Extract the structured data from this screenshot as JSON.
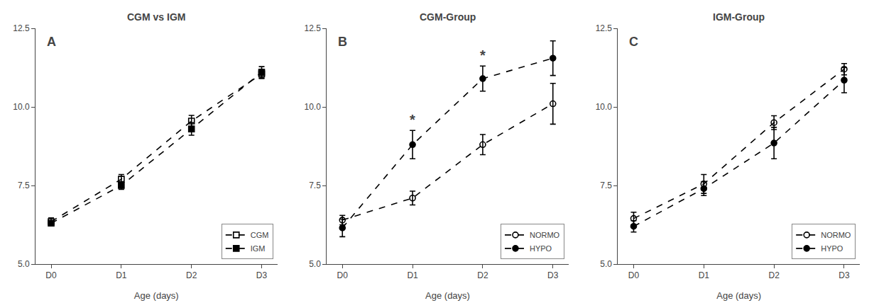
{
  "chart_data": [
    {
      "type": "line",
      "title": "CGM vs IGM",
      "xlabel": "Age (days)",
      "categories": [
        "D0",
        "D1",
        "D2",
        "D3"
      ],
      "series": [
        {
          "name": "CGM",
          "values": [
            6.35,
            7.7,
            9.55,
            11.05
          ],
          "yerr": [
            0.12,
            0.15,
            0.18,
            0.15
          ],
          "marker": "square-open",
          "line_style": "dashed",
          "color": "black"
        },
        {
          "name": "IGM",
          "values": [
            6.3,
            7.5,
            9.3,
            11.1
          ],
          "yerr": [
            0.08,
            0.12,
            0.2,
            0.18
          ],
          "marker": "square",
          "line_style": "dashed",
          "color": "black"
        }
      ],
      "annotations": [
        {
          "text": "A"
        }
      ],
      "ylim": [
        5.0,
        12.5
      ],
      "yticks": [
        {
          "value": 5.0,
          "label": "5.0"
        },
        7.5,
        {
          "value": 10.0,
          "label": "10.0"
        },
        12.5
      ],
      "grid": false,
      "legend": "lower right"
    },
    {
      "type": "line",
      "title": "CGM-Group",
      "xlabel": "Age (days)",
      "categories": [
        "D0",
        "D1",
        "D2",
        "D3"
      ],
      "series": [
        {
          "name": "NORMO",
          "values": [
            6.4,
            7.1,
            8.8,
            10.1
          ],
          "yerr": [
            0.15,
            0.22,
            0.32,
            0.65
          ],
          "marker": "circle-open",
          "line_style": "dashed",
          "color": "black"
        },
        {
          "name": "HYPO",
          "values": [
            6.15,
            8.8,
            10.9,
            11.55
          ],
          "yerr": [
            0.28,
            0.45,
            0.4,
            0.55
          ],
          "marker": "circle",
          "line_style": "dashed",
          "color": "black"
        }
      ],
      "annotations": [
        {
          "text": "B"
        },
        {
          "text": "*",
          "x": "D1"
        },
        {
          "text": "*",
          "x": "D2"
        }
      ],
      "ylim": [
        5.0,
        12.5
      ],
      "yticks": [
        {
          "value": 5.0,
          "label": "5.0"
        },
        7.5,
        {
          "value": 10.0,
          "label": "10.0"
        },
        12.5
      ],
      "grid": false,
      "legend": "lower right"
    },
    {
      "type": "line",
      "title": "IGM-Group",
      "xlabel": "Age (days)",
      "categories": [
        "D0",
        "D1",
        "D2",
        "D3"
      ],
      "series": [
        {
          "name": "NORMO",
          "values": [
            6.45,
            7.55,
            9.5,
            11.2
          ],
          "yerr": [
            0.2,
            0.3,
            0.22,
            0.18
          ],
          "marker": "circle-open",
          "line_style": "dashed",
          "color": "black"
        },
        {
          "name": "HYPO",
          "values": [
            6.2,
            7.4,
            8.85,
            10.85
          ],
          "yerr": [
            0.18,
            0.22,
            0.5,
            0.4
          ],
          "marker": "circle",
          "line_style": "dashed",
          "color": "black"
        }
      ],
      "annotations": [
        {
          "text": "C"
        }
      ],
      "ylim": [
        5.0,
        12.5
      ],
      "yticks": [
        {
          "value": 5.0,
          "label": "5.0"
        },
        7.5,
        {
          "value": 10.0,
          "label": "10.0"
        },
        12.5
      ],
      "grid": false,
      "legend": "lower right"
    }
  ]
}
